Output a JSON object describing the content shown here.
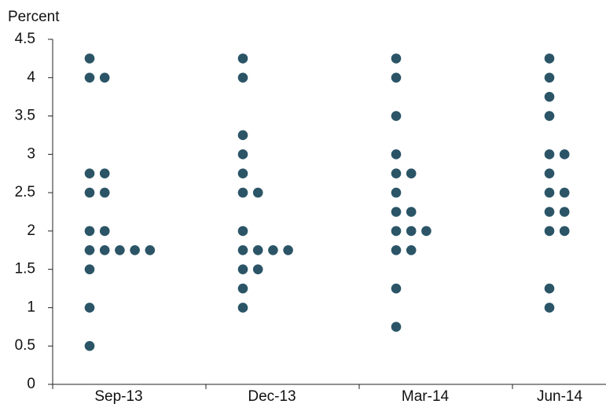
{
  "chart_data": {
    "type": "dot",
    "y_label": "Percent",
    "categories": [
      "Sep-13",
      "Dec-13",
      "Mar-14",
      "Jun-14"
    ],
    "color": "#2b5567",
    "values": [
      [
        4.25,
        4,
        4,
        2.75,
        2.75,
        2.5,
        2.5,
        2,
        2,
        1.75,
        1.75,
        1.75,
        1.75,
        1.75,
        1.5,
        1,
        0.5
      ],
      [
        4.25,
        4,
        3.25,
        3,
        2.75,
        2.5,
        2.5,
        2,
        1.75,
        1.75,
        1.75,
        1.75,
        1.5,
        1.5,
        1.25,
        1
      ],
      [
        4.25,
        4,
        3.5,
        3,
        2.75,
        2.75,
        2.5,
        2.25,
        2.25,
        2,
        2,
        2,
        1.75,
        1.75,
        1.25,
        0.75
      ],
      [
        4.25,
        4,
        3.75,
        3.5,
        3,
        3,
        2.75,
        2.5,
        2.5,
        2.25,
        2.25,
        2,
        2,
        1.25,
        1
      ]
    ],
    "ylim": [
      0,
      4.5
    ],
    "yticks": [
      0,
      0.5,
      1,
      1.5,
      2,
      2.5,
      3,
      3.5,
      4,
      4.5
    ]
  }
}
